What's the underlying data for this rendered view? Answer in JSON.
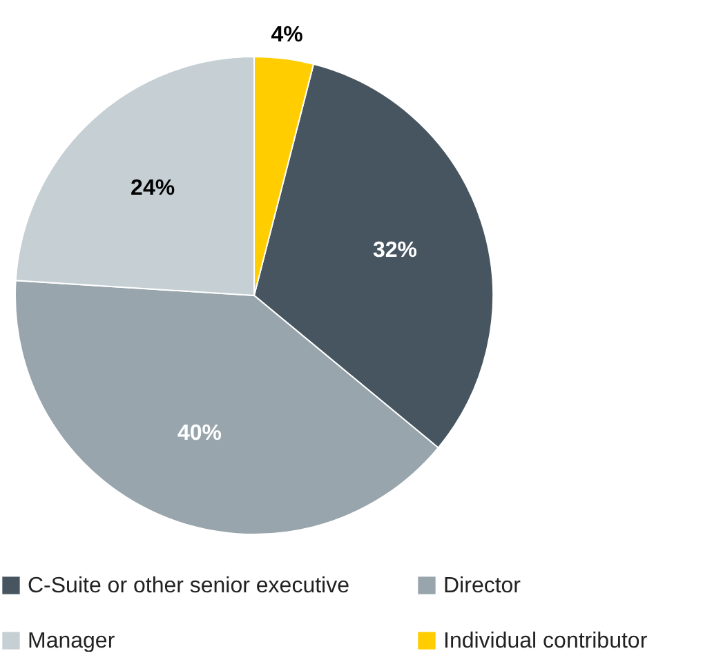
{
  "chart_data": {
    "type": "pie",
    "categories": [
      "C-Suite or other senior executive",
      "Director",
      "Manager",
      "Individual contributor"
    ],
    "values": [
      32,
      40,
      24,
      4
    ],
    "colors": [
      "#46555f",
      "#98a5ac",
      "#c5cfd4",
      "#ffcd00"
    ],
    "value_labels": [
      "32%",
      "40%",
      "24%",
      "4%"
    ],
    "legend": "bottom"
  }
}
